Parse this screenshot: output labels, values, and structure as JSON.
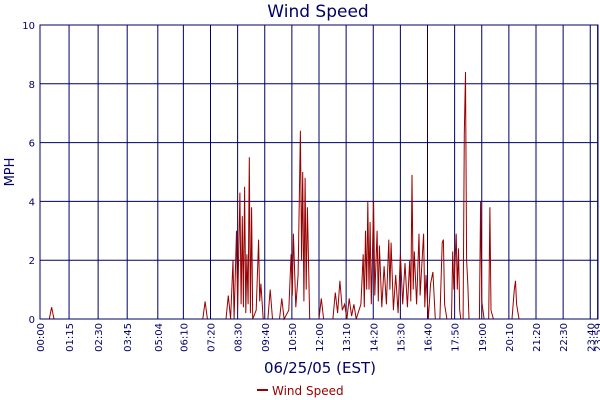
{
  "chart_data": {
    "type": "line",
    "title": "Wind Speed",
    "xlabel": "06/25/05 (EST)",
    "ylabel": "MPH",
    "ylim": [
      0,
      10
    ],
    "y_ticks": [
      "0",
      "2",
      "4",
      "6",
      "8",
      "10"
    ],
    "x_ticks": [
      "00:00",
      "01:15",
      "02:30",
      "03:45",
      "05:04",
      "06:10",
      "07:20",
      "08:30",
      "09:40",
      "10:50",
      "12:00",
      "13:10",
      "14:20",
      "15:30",
      "16:40",
      "17:50",
      "19:00",
      "20:10",
      "21:20",
      "22:30",
      "23:40",
      "23:59"
    ],
    "x_range_hours": [
      0,
      24
    ],
    "grid": true,
    "legend": "bottom-center",
    "colors": {
      "series": "#990000",
      "grid": "#000066",
      "axis_text": "#000066",
      "title": "#000066"
    },
    "series": [
      {
        "name": "Wind Speed",
        "points": [
          [
            0.0,
            0
          ],
          [
            0.4,
            0
          ],
          [
            0.5,
            0.4
          ],
          [
            0.6,
            0
          ],
          [
            7.0,
            0
          ],
          [
            7.1,
            0.6
          ],
          [
            7.2,
            0
          ],
          [
            8.0,
            0
          ],
          [
            8.1,
            0.8
          ],
          [
            8.2,
            0
          ],
          [
            8.3,
            2.0
          ],
          [
            8.35,
            0
          ],
          [
            8.45,
            3.0
          ],
          [
            8.5,
            0.3
          ],
          [
            8.6,
            4.3
          ],
          [
            8.65,
            0.5
          ],
          [
            8.7,
            3.5
          ],
          [
            8.75,
            0.4
          ],
          [
            8.8,
            4.5
          ],
          [
            8.85,
            0.2
          ],
          [
            8.9,
            2.2
          ],
          [
            8.95,
            0.5
          ],
          [
            9.0,
            5.5
          ],
          [
            9.05,
            0.2
          ],
          [
            9.1,
            3.8
          ],
          [
            9.15,
            0
          ],
          [
            9.3,
            0.3
          ],
          [
            9.4,
            2.7
          ],
          [
            9.45,
            0.6
          ],
          [
            9.5,
            1.2
          ],
          [
            9.6,
            0
          ],
          [
            9.8,
            0
          ],
          [
            9.9,
            1.0
          ],
          [
            10.0,
            0
          ],
          [
            10.3,
            0
          ],
          [
            10.4,
            0.7
          ],
          [
            10.5,
            0
          ],
          [
            10.7,
            0.3
          ],
          [
            10.8,
            2.2
          ],
          [
            10.85,
            0.8
          ],
          [
            10.9,
            2.9
          ],
          [
            11.0,
            0.4
          ],
          [
            11.1,
            1.5
          ],
          [
            11.2,
            6.4
          ],
          [
            11.25,
            2.0
          ],
          [
            11.3,
            5.0
          ],
          [
            11.35,
            0.6
          ],
          [
            11.4,
            4.8
          ],
          [
            11.45,
            1.0
          ],
          [
            11.5,
            3.8
          ],
          [
            11.6,
            0
          ],
          [
            12.0,
            0
          ],
          [
            12.1,
            0.7
          ],
          [
            12.2,
            0
          ],
          [
            12.6,
            0
          ],
          [
            12.7,
            0.9
          ],
          [
            12.8,
            0.2
          ],
          [
            12.9,
            1.3
          ],
          [
            13.0,
            0.3
          ],
          [
            13.1,
            0.5
          ],
          [
            13.2,
            0
          ],
          [
            13.3,
            0.7
          ],
          [
            13.4,
            0.1
          ],
          [
            13.5,
            0.5
          ],
          [
            13.6,
            0
          ],
          [
            13.8,
            0.5
          ],
          [
            13.9,
            2.2
          ],
          [
            13.95,
            0.4
          ],
          [
            14.0,
            3.0
          ],
          [
            14.05,
            1.0
          ],
          [
            14.1,
            4.0
          ],
          [
            14.15,
            1.0
          ],
          [
            14.2,
            3.3
          ],
          [
            14.25,
            0.5
          ],
          [
            14.35,
            4.0
          ],
          [
            14.4,
            0.8
          ],
          [
            14.5,
            3.0
          ],
          [
            14.55,
            0.6
          ],
          [
            14.6,
            2.5
          ],
          [
            14.7,
            0.4
          ],
          [
            14.8,
            1.8
          ],
          [
            14.9,
            0.5
          ],
          [
            15.0,
            2.7
          ],
          [
            15.05,
            1.0
          ],
          [
            15.1,
            2.6
          ],
          [
            15.2,
            0.3
          ],
          [
            15.3,
            1.5
          ],
          [
            15.4,
            0.2
          ],
          [
            15.5,
            2.2
          ],
          [
            15.6,
            0.5
          ],
          [
            15.7,
            1.9
          ],
          [
            15.8,
            0.4
          ],
          [
            15.9,
            2.0
          ],
          [
            15.95,
            0.6
          ],
          [
            16.0,
            4.9
          ],
          [
            16.05,
            1.0
          ],
          [
            16.1,
            2.3
          ],
          [
            16.2,
            0.5
          ],
          [
            16.3,
            2.9
          ],
          [
            16.35,
            0.8
          ],
          [
            16.5,
            2.9
          ],
          [
            16.55,
            0.4
          ],
          [
            16.6,
            1.5
          ],
          [
            16.7,
            0
          ],
          [
            16.8,
            1.2
          ],
          [
            16.9,
            1.6
          ],
          [
            17.0,
            0
          ],
          [
            17.2,
            0
          ],
          [
            17.3,
            2.6
          ],
          [
            17.35,
            2.7
          ],
          [
            17.4,
            0.5
          ],
          [
            17.5,
            0
          ],
          [
            17.7,
            0
          ],
          [
            17.75,
            2.3
          ],
          [
            17.8,
            1.0
          ],
          [
            17.9,
            2.9
          ],
          [
            17.95,
            1.0
          ],
          [
            18.0,
            2.4
          ],
          [
            18.05,
            0.3
          ],
          [
            18.1,
            0
          ],
          [
            18.2,
            0
          ],
          [
            18.25,
            6.3
          ],
          [
            18.3,
            8.4
          ],
          [
            18.35,
            2.0
          ],
          [
            18.4,
            1.2
          ],
          [
            18.45,
            0
          ],
          [
            18.9,
            0
          ],
          [
            18.95,
            4.0
          ],
          [
            19.0,
            0.6
          ],
          [
            19.1,
            0
          ],
          [
            19.3,
            0
          ],
          [
            19.35,
            3.8
          ],
          [
            19.4,
            0.3
          ],
          [
            19.5,
            0
          ],
          [
            20.3,
            0
          ],
          [
            20.4,
            1.0
          ],
          [
            20.45,
            1.3
          ],
          [
            20.5,
            0.5
          ],
          [
            20.6,
            0
          ],
          [
            24.0,
            0
          ]
        ]
      }
    ]
  }
}
